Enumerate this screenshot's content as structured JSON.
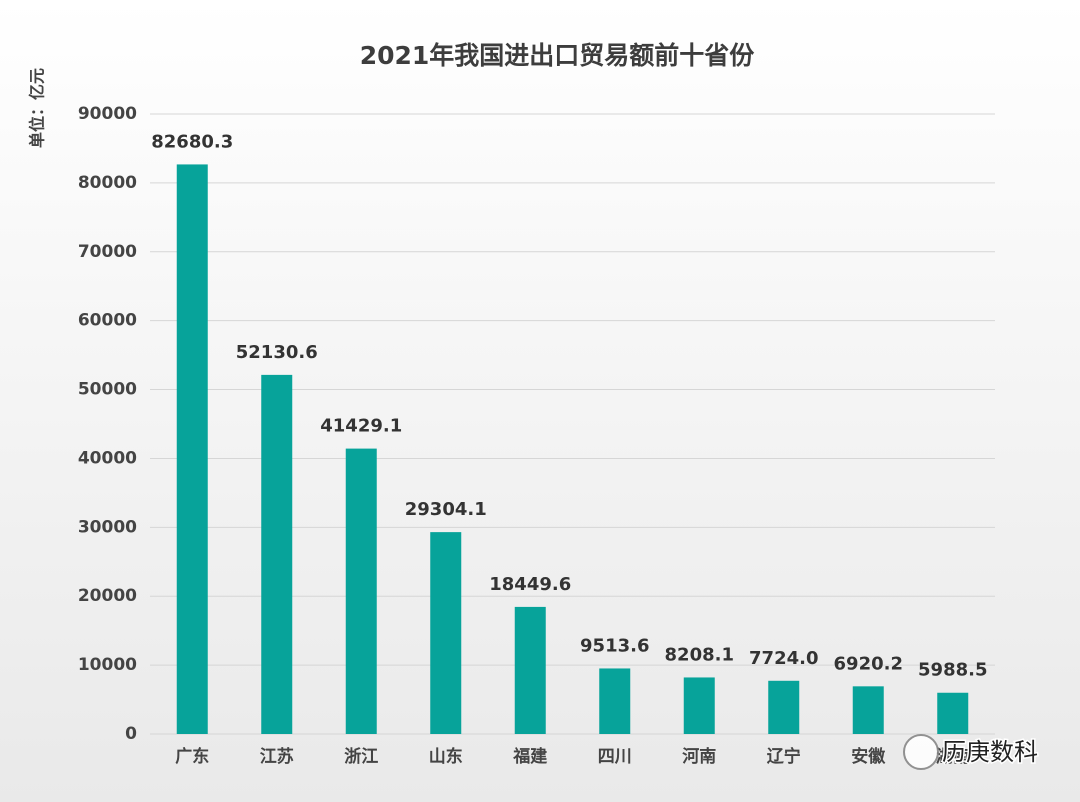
{
  "chart_data": {
    "type": "bar",
    "title": "2021年我国进出口贸易额前十省份",
    "y_label": "单位：亿元",
    "categories": [
      "广东",
      "江苏",
      "浙江",
      "山东",
      "福建",
      "四川",
      "河南",
      "辽宁",
      "安徽",
      "湖南"
    ],
    "values": [
      82680.3,
      52130.6,
      41429.1,
      29304.1,
      18449.6,
      9513.6,
      8208.1,
      7724.0,
      6920.2,
      5988.5
    ],
    "value_labels": [
      "82680.3",
      "52130.6",
      "41429.1",
      "29304.1",
      "18449.6",
      "9513.6",
      "8208.1",
      "7724.0",
      "6920.2",
      "5988.5"
    ],
    "color": "#07a39a",
    "ylim": [
      0,
      90000
    ],
    "yticks": [
      0,
      10000,
      20000,
      30000,
      40000,
      50000,
      60000,
      70000,
      80000,
      90000
    ],
    "grid": true,
    "watermark": "历庚数科"
  }
}
